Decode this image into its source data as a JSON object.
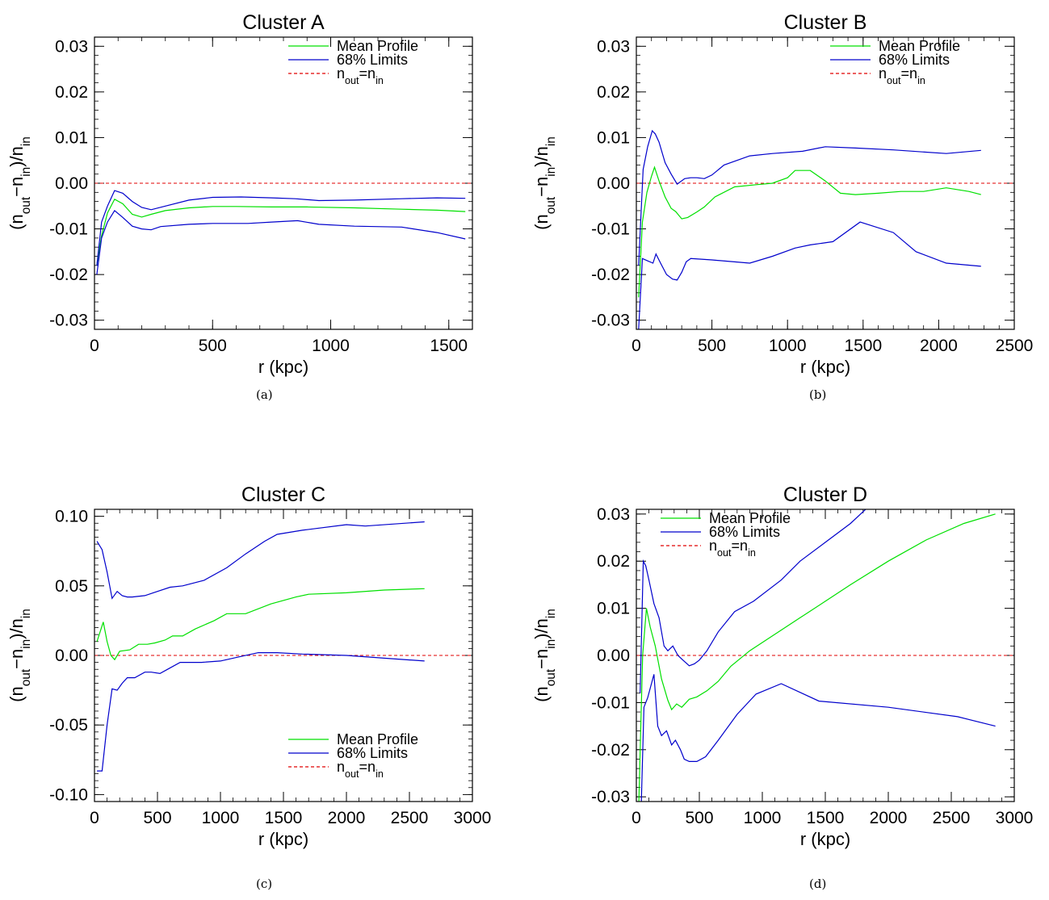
{
  "figure": {
    "captions": [
      "(a)",
      "(b)",
      "(c)",
      "(d)"
    ]
  },
  "legend_labels": {
    "mean": "Mean Profile",
    "limits": "68% Limits",
    "ref": "n_out=n_in"
  },
  "chart_data": [
    {
      "type": "line",
      "title": "Cluster A",
      "xlabel": "r (kpc)",
      "ylabel": "(n_out−n_in)/n_in",
      "xlim": [
        0,
        1600
      ],
      "ylim": [
        -0.032,
        0.032
      ],
      "xticks": [
        0,
        500,
        1000,
        1500
      ],
      "xtick_labels": [
        "0",
        "500",
        "1000",
        "1500"
      ],
      "yticks": [
        -0.03,
        -0.02,
        -0.01,
        0.0,
        0.01,
        0.02,
        0.03
      ],
      "ytick_labels": [
        "-0.03",
        "-0.02",
        "-0.01",
        "0.00",
        "0.01",
        "0.02",
        "0.03"
      ],
      "legend_position": "top-right",
      "colors": {
        "mean": "#00e000",
        "limits": "#0000cc",
        "ref": "#e00000"
      },
      "series": [
        {
          "name": "Mean Profile",
          "role": "mean",
          "x": [
            10,
            30,
            55,
            85,
            120,
            160,
            200,
            240,
            300,
            400,
            500,
            600,
            750,
            900,
            1100,
            1300,
            1450,
            1570
          ],
          "y": [
            -0.018,
            -0.0115,
            -0.0065,
            -0.0035,
            -0.0045,
            -0.0068,
            -0.0074,
            -0.0068,
            -0.006,
            -0.0054,
            -0.0051,
            -0.0051,
            -0.0052,
            -0.0052,
            -0.0054,
            -0.0057,
            -0.0059,
            -0.0062
          ]
        },
        {
          "name": "68% Limits",
          "role": "limits",
          "x": [
            10,
            30,
            55,
            85,
            120,
            160,
            200,
            240,
            300,
            400,
            500,
            620,
            750,
            850,
            950,
            1100,
            1300,
            1450,
            1570
          ],
          "y": [
            -0.018,
            -0.0085,
            -0.005,
            -0.0016,
            -0.0022,
            -0.004,
            -0.0053,
            -0.0058,
            -0.005,
            -0.0037,
            -0.0031,
            -0.003,
            -0.0032,
            -0.0034,
            -0.0038,
            -0.0037,
            -0.0034,
            -0.0032,
            -0.0033
          ]
        },
        {
          "name": "68% Limits",
          "role": "limits",
          "x": [
            10,
            30,
            55,
            85,
            120,
            160,
            200,
            240,
            280,
            400,
            500,
            650,
            750,
            860,
            950,
            1100,
            1300,
            1450,
            1570
          ],
          "y": [
            -0.02,
            -0.012,
            -0.0085,
            -0.006,
            -0.0075,
            -0.0094,
            -0.01,
            -0.0102,
            -0.0095,
            -0.009,
            -0.0088,
            -0.0088,
            -0.0085,
            -0.0082,
            -0.009,
            -0.0094,
            -0.0096,
            -0.0108,
            -0.0122
          ]
        }
      ]
    },
    {
      "type": "line",
      "title": "Cluster B",
      "xlabel": "r (kpc)",
      "ylabel": "(n_out−n_in)/n_in",
      "xlim": [
        0,
        2500
      ],
      "ylim": [
        -0.032,
        0.032
      ],
      "xticks": [
        0,
        500,
        1000,
        1500,
        2000,
        2500
      ],
      "xtick_labels": [
        "0",
        "500",
        "1000",
        "1500",
        "2000",
        "2500"
      ],
      "yticks": [
        -0.03,
        -0.02,
        -0.01,
        0.0,
        0.01,
        0.02,
        0.03
      ],
      "ytick_labels": [
        "-0.03",
        "-0.02",
        "-0.01",
        "0.00",
        "0.01",
        "0.02",
        "0.03"
      ],
      "legend_position": "top-right",
      "colors": {
        "mean": "#00e000",
        "limits": "#0000cc",
        "ref": "#e00000"
      },
      "series": [
        {
          "name": "Mean Profile",
          "role": "mean",
          "x": [
            15,
            40,
            70,
            100,
            120,
            150,
            190,
            230,
            260,
            300,
            340,
            400,
            450,
            520,
            650,
            800,
            900,
            1000,
            1050,
            1150,
            1250,
            1350,
            1450,
            1600,
            1750,
            1900,
            2050,
            2200,
            2280
          ],
          "y": [
            -0.025,
            -0.0085,
            -0.002,
            0.0015,
            0.0035,
            0.0005,
            -0.003,
            -0.0055,
            -0.0062,
            -0.0078,
            -0.0075,
            -0.0063,
            -0.0052,
            -0.003,
            -0.0008,
            -0.0003,
            0.0,
            0.0012,
            0.0028,
            0.0028,
            0.0005,
            -0.0022,
            -0.0025,
            -0.0022,
            -0.0018,
            -0.0018,
            -0.001,
            -0.0018,
            -0.0025
          ]
        },
        {
          "name": "68% Limits",
          "role": "limits",
          "x": [
            15,
            45,
            75,
            105,
            125,
            150,
            190,
            230,
            270,
            320,
            360,
            400,
            450,
            500,
            580,
            750,
            900,
            1100,
            1250,
            1450,
            1700,
            2050,
            2280
          ],
          "y": [
            -0.018,
            0.003,
            0.008,
            0.0115,
            0.0108,
            0.009,
            0.0045,
            0.002,
            -0.0002,
            0.001,
            0.0012,
            0.0012,
            0.001,
            0.0018,
            0.004,
            0.006,
            0.0065,
            0.007,
            0.008,
            0.0077,
            0.0073,
            0.0065,
            0.0072
          ]
        },
        {
          "name": "68% Limits",
          "role": "limits",
          "x": [
            15,
            40,
            75,
            110,
            130,
            160,
            200,
            240,
            270,
            300,
            330,
            360,
            500,
            750,
            900,
            1050,
            1150,
            1300,
            1480,
            1700,
            1850,
            2050,
            2280
          ],
          "y": [
            -0.032,
            -0.0165,
            -0.017,
            -0.0175,
            -0.0155,
            -0.0175,
            -0.02,
            -0.021,
            -0.0212,
            -0.0195,
            -0.0172,
            -0.0165,
            -0.0168,
            -0.0175,
            -0.016,
            -0.0142,
            -0.0135,
            -0.0128,
            -0.0085,
            -0.0108,
            -0.015,
            -0.0175,
            -0.0182
          ]
        }
      ]
    },
    {
      "type": "line",
      "title": "Cluster C",
      "xlabel": "r (kpc)",
      "ylabel": "(n_out−n_in)/n_in",
      "xlim": [
        0,
        3000
      ],
      "ylim": [
        -0.105,
        0.105
      ],
      "xticks": [
        0,
        500,
        1000,
        1500,
        2000,
        2500,
        3000
      ],
      "xtick_labels": [
        "0",
        "500",
        "1000",
        "1500",
        "2000",
        "2500",
        "3000"
      ],
      "yticks": [
        -0.1,
        -0.05,
        0.0,
        0.05,
        0.1
      ],
      "ytick_labels": [
        "-0.10",
        "-0.05",
        "0.00",
        "0.05",
        "0.10"
      ],
      "legend_position": "bottom-right",
      "colors": {
        "mean": "#00e000",
        "limits": "#0000cc",
        "ref": "#e00000"
      },
      "series": [
        {
          "name": "Mean Profile",
          "role": "mean",
          "x": [
            20,
            70,
            100,
            130,
            160,
            200,
            280,
            350,
            420,
            480,
            560,
            620,
            700,
            800,
            950,
            1050,
            1200,
            1400,
            1600,
            1700,
            2000,
            2300,
            2620
          ],
          "y": [
            0.01,
            0.024,
            0.01,
            0.0,
            -0.003,
            0.003,
            0.004,
            0.008,
            0.008,
            0.009,
            0.011,
            0.014,
            0.014,
            0.019,
            0.025,
            0.03,
            0.03,
            0.037,
            0.042,
            0.044,
            0.045,
            0.047,
            0.048
          ]
        },
        {
          "name": "68% Limits",
          "role": "limits",
          "x": [
            20,
            60,
            100,
            140,
            180,
            220,
            260,
            300,
            400,
            500,
            600,
            700,
            870,
            1050,
            1200,
            1350,
            1450,
            1650,
            2000,
            2150,
            2620
          ],
          "y": [
            0.082,
            0.076,
            0.06,
            0.041,
            0.046,
            0.043,
            0.042,
            0.042,
            0.043,
            0.046,
            0.049,
            0.05,
            0.054,
            0.063,
            0.073,
            0.082,
            0.087,
            0.09,
            0.094,
            0.093,
            0.096
          ]
        },
        {
          "name": "68% Limits",
          "role": "limits",
          "x": [
            20,
            60,
            100,
            140,
            180,
            220,
            260,
            320,
            400,
            450,
            520,
            580,
            680,
            850,
            1000,
            1150,
            1300,
            1450,
            1650,
            2000,
            2300,
            2620
          ],
          "y": [
            -0.083,
            -0.083,
            -0.05,
            -0.024,
            -0.025,
            -0.02,
            -0.016,
            -0.016,
            -0.012,
            -0.012,
            -0.013,
            -0.01,
            -0.005,
            -0.005,
            -0.004,
            -0.001,
            0.002,
            0.002,
            0.001,
            0.0,
            -0.002,
            -0.004
          ]
        }
      ]
    },
    {
      "type": "line",
      "title": "Cluster D",
      "xlabel": "r (kpc)",
      "ylabel": "(n_out−n_in)/n_in",
      "xlim": [
        0,
        3000
      ],
      "ylim": [
        -0.031,
        0.031
      ],
      "xticks": [
        0,
        500,
        1000,
        1500,
        2000,
        2500,
        3000
      ],
      "xtick_labels": [
        "0",
        "500",
        "1000",
        "1500",
        "2000",
        "2500",
        "3000"
      ],
      "yticks": [
        -0.03,
        -0.02,
        -0.01,
        0.0,
        0.01,
        0.02,
        0.03
      ],
      "ytick_labels": [
        "-0.03",
        "-0.02",
        "-0.01",
        "0.00",
        "0.01",
        "0.02",
        "0.03"
      ],
      "legend_position": "top-left",
      "colors": {
        "mean": "#00e000",
        "limits": "#0000cc",
        "ref": "#e00000"
      },
      "series": [
        {
          "name": "Mean Profile",
          "role": "mean",
          "x": [
            20,
            50,
            80,
            110,
            150,
            200,
            250,
            280,
            320,
            360,
            420,
            480,
            560,
            650,
            750,
            900,
            1100,
            1300,
            1500,
            1700,
            2000,
            2300,
            2600,
            2850
          ],
          "y": [
            -0.031,
            0.0,
            0.01,
            0.006,
            0.002,
            -0.005,
            -0.0095,
            -0.0115,
            -0.0103,
            -0.011,
            -0.0093,
            -0.0088,
            -0.0075,
            -0.0055,
            -0.0023,
            0.001,
            0.0045,
            0.008,
            0.0115,
            0.015,
            0.02,
            0.0245,
            0.028,
            0.03
          ]
        },
        {
          "name": "68% Limits",
          "role": "limits",
          "x": [
            30,
            55,
            75,
            100,
            140,
            180,
            220,
            250,
            290,
            330,
            370,
            420,
            460,
            500,
            560,
            650,
            780,
            930,
            1150,
            1300,
            1500,
            1700,
            1820
          ],
          "y": [
            -0.008,
            0.02,
            0.019,
            0.016,
            0.011,
            0.008,
            0.002,
            0.001,
            0.002,
            0.0,
            -0.001,
            -0.0022,
            -0.0018,
            -0.001,
            0.001,
            0.005,
            0.0093,
            0.0115,
            0.016,
            0.02,
            0.024,
            0.028,
            0.031
          ]
        },
        {
          "name": "68% Limits",
          "role": "limits",
          "x": [
            40,
            60,
            90,
            140,
            170,
            200,
            240,
            280,
            310,
            350,
            380,
            420,
            480,
            550,
            650,
            800,
            950,
            1150,
            1450,
            2000,
            2550,
            2850
          ],
          "y": [
            -0.031,
            -0.011,
            -0.009,
            -0.004,
            -0.015,
            -0.017,
            -0.016,
            -0.019,
            -0.018,
            -0.02,
            -0.022,
            -0.0225,
            -0.0225,
            -0.0215,
            -0.018,
            -0.0125,
            -0.0082,
            -0.006,
            -0.0097,
            -0.011,
            -0.013,
            -0.015
          ]
        }
      ]
    }
  ]
}
